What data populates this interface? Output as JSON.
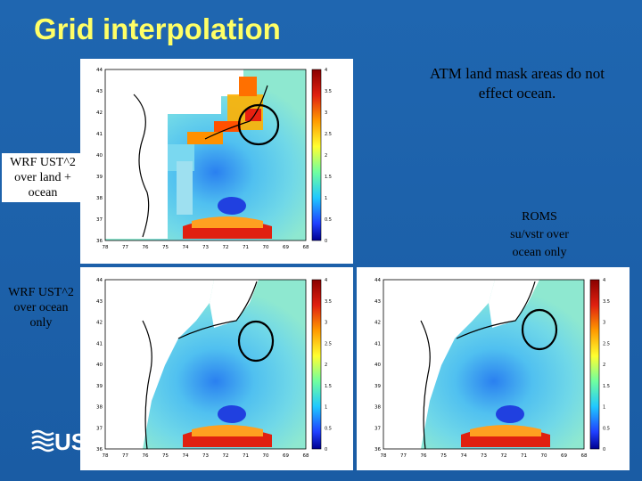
{
  "slide": {
    "title": "Grid interpolation",
    "note_top_line1": "ATM land mask areas do not",
    "note_top_line2": "effect ocean.",
    "label_wrf_land_ocean": [
      "WRF UST^2",
      "over land +",
      "ocean"
    ],
    "label_wrf_ocean": [
      "WRF UST^2",
      "over ocean",
      "only"
    ],
    "label_roms": [
      "ROMS",
      "su/vstr over",
      "ocean only"
    ],
    "logo_text": "US"
  },
  "colors": {
    "background": "#1a5fa8",
    "title": "#ffff66",
    "ocean_base": "#55c8ee",
    "land": "#ffffff",
    "high": "#c81a12"
  },
  "maps": {
    "y_ticks": [
      "44",
      "43",
      "42",
      "41",
      "40",
      "39",
      "38",
      "37",
      "36"
    ],
    "x_ticks": [
      "78",
      "77",
      "76",
      "75",
      "74",
      "73",
      "72",
      "71",
      "70",
      "69",
      "68"
    ],
    "colorbar_ticks": [
      "4",
      "3.5",
      "3",
      "2.5",
      "2",
      "1.5",
      "1",
      "0.5",
      "0"
    ]
  }
}
